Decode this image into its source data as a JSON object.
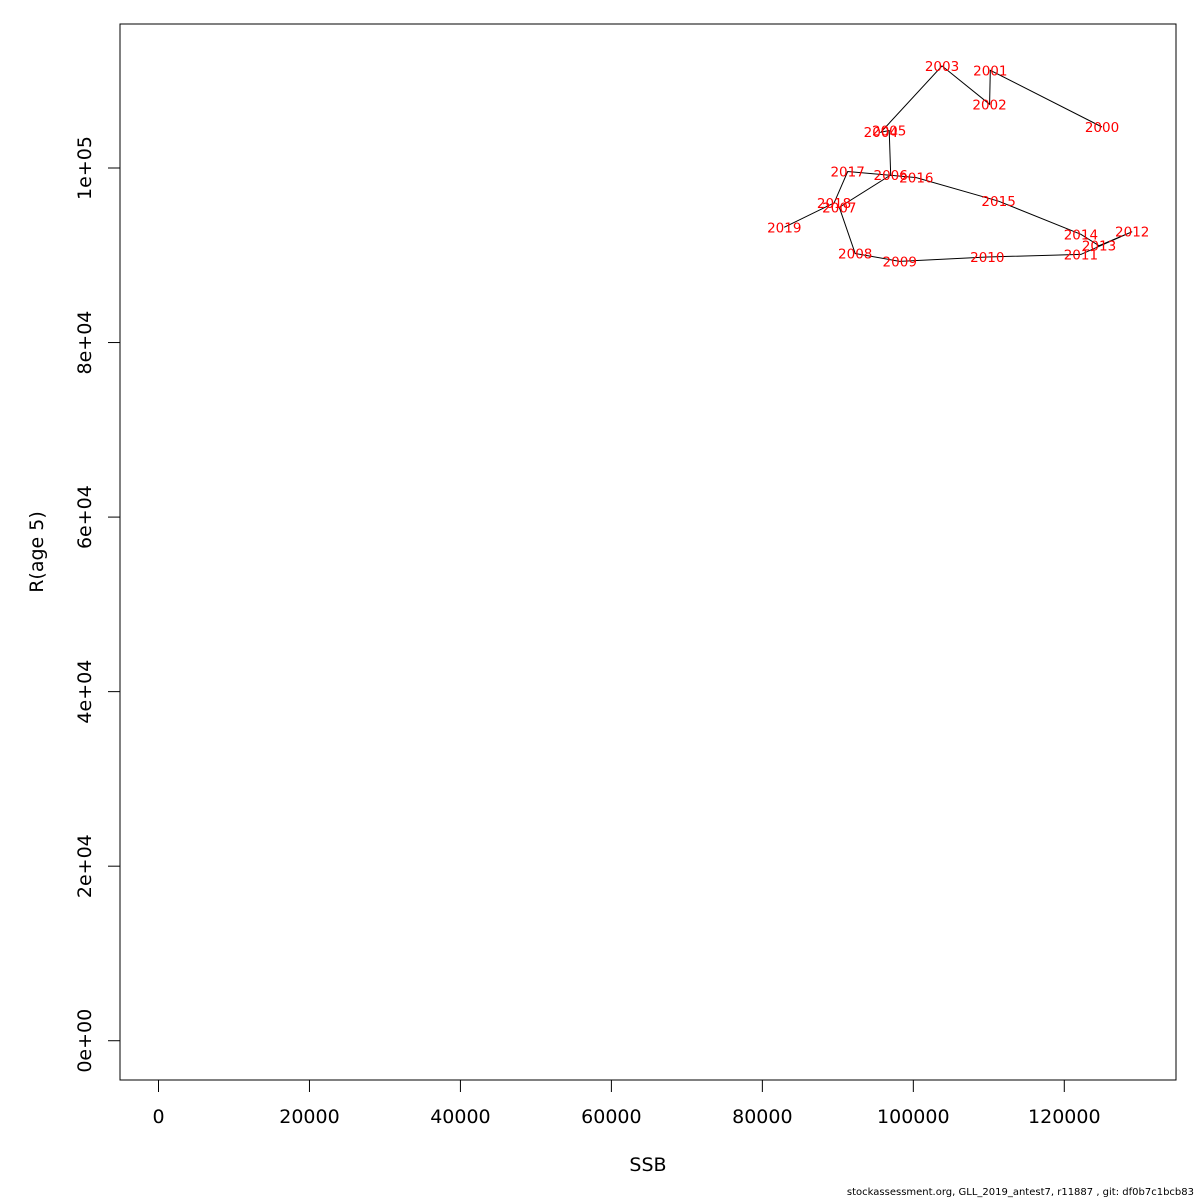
{
  "chart_data": {
    "type": "line",
    "xlabel": "SSB",
    "ylabel": "R(age 5)",
    "xlim": [
      -5100,
      134800
    ],
    "ylim": [
      -4500,
      116500
    ],
    "x_ticks": [
      0,
      20000,
      40000,
      60000,
      80000,
      100000,
      120000
    ],
    "x_tick_labels": [
      "0",
      "20000",
      "40000",
      "60000",
      "80000",
      "100000",
      "120000"
    ],
    "y_ticks": [
      0,
      20000,
      40000,
      60000,
      80000,
      100000
    ],
    "y_tick_labels": [
      "0e+00",
      "2e+04",
      "4e+04",
      "6e+04",
      "8e+04",
      "1e+05"
    ],
    "label_color": "#ff0000",
    "line_color": "#000000",
    "grid": false,
    "points": [
      {
        "year": "2000",
        "x": 125000,
        "y": 104700
      },
      {
        "year": "2001",
        "x": 110200,
        "y": 111200
      },
      {
        "year": "2002",
        "x": 110100,
        "y": 107300
      },
      {
        "year": "2003",
        "x": 103800,
        "y": 111700
      },
      {
        "year": "2004",
        "x": 95700,
        "y": 104100
      },
      {
        "year": "2005",
        "x": 96800,
        "y": 104300
      },
      {
        "year": "2006",
        "x": 97000,
        "y": 99200
      },
      {
        "year": "2007",
        "x": 90200,
        "y": 95500
      },
      {
        "year": "2008",
        "x": 92300,
        "y": 90200
      },
      {
        "year": "2009",
        "x": 98200,
        "y": 89300
      },
      {
        "year": "2010",
        "x": 109800,
        "y": 89800
      },
      {
        "year": "2011",
        "x": 122200,
        "y": 90100
      },
      {
        "year": "2012",
        "x": 129000,
        "y": 92700
      },
      {
        "year": "2013",
        "x": 124600,
        "y": 91100
      },
      {
        "year": "2014",
        "x": 122200,
        "y": 92400
      },
      {
        "year": "2015",
        "x": 111300,
        "y": 96200
      },
      {
        "year": "2016",
        "x": 100400,
        "y": 98900
      },
      {
        "year": "2017",
        "x": 91300,
        "y": 99600
      },
      {
        "year": "2018",
        "x": 89500,
        "y": 96000
      },
      {
        "year": "2019",
        "x": 82900,
        "y": 93200
      }
    ]
  },
  "footer": "stockassessment.org, GLL_2019_antest7, r11887 , git: df0b7c1bcb83"
}
